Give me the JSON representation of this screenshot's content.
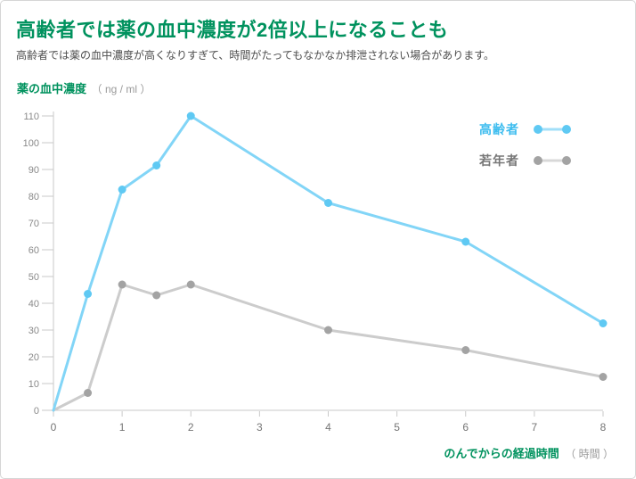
{
  "header": {
    "title": "高齢者では薬の血中濃度が2倍以上になることも",
    "subtitle": "高齢者では薬の血中濃度が高くなりすぎて、時間がたってもなかなか排泄されない場合があります。"
  },
  "colors": {
    "accent_green": "#00925e",
    "card_border": "#d5d5d5",
    "subtitle_text": "#4d4d4d"
  },
  "axis_style": {
    "axis_color": "#c9c9c9",
    "y_tick_label_color": "#8a8a8a",
    "x_tick_label_color": "#757575"
  },
  "chart_data": {
    "type": "line",
    "title": "",
    "xlabel": "のんでからの経過時間",
    "xlabel_unit": "（ 時間 ）",
    "ylabel": "薬の血中濃度",
    "ylabel_unit": "（ ng / ml ）",
    "xlim": [
      0,
      8
    ],
    "ylim": [
      0,
      110
    ],
    "ytick_step": 10,
    "xticks": [
      0,
      1,
      2,
      3,
      4,
      5,
      6,
      7,
      8
    ],
    "grid": false,
    "legend_position": "top-right",
    "x": [
      0,
      0.5,
      1,
      1.5,
      2,
      4,
      6,
      8
    ],
    "series": [
      {
        "name": "高齢者",
        "values": [
          0,
          43.5,
          82.5,
          91.5,
          110,
          77.5,
          63,
          32.5
        ],
        "line_color": "#82d5f7",
        "marker_color": "#5fc9f3",
        "label_color": "#3ebdef"
      },
      {
        "name": "若年者",
        "values": [
          0,
          6.5,
          47,
          43,
          47,
          30,
          22.5,
          12.5
        ],
        "line_color": "#cccccc",
        "marker_color": "#a3a3a3",
        "label_color": "#777777"
      }
    ]
  }
}
